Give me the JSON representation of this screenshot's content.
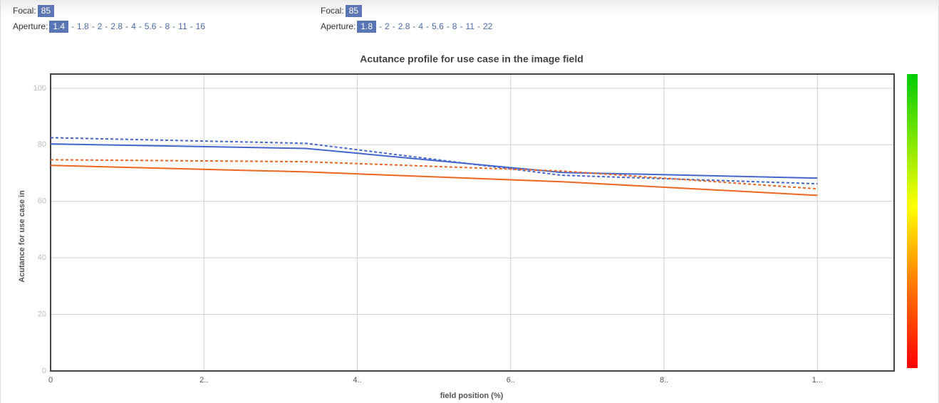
{
  "panels": [
    {
      "focal_label": "Focal:",
      "focal": "85",
      "aperture_label": "Aperture:",
      "aperture_selected": "1.4",
      "aperture_options": [
        "1.8",
        "2",
        "2.8",
        "4",
        "5.6",
        "8",
        "11",
        "16"
      ]
    },
    {
      "focal_label": "Focal:",
      "focal": "85",
      "aperture_label": "Aperture:",
      "aperture_selected": "1.8",
      "aperture_options": [
        "2",
        "2.8",
        "4",
        "5.6",
        "8",
        "11",
        "22"
      ]
    }
  ],
  "separator": "-",
  "chart_data": {
    "type": "line",
    "title": "Acutance profile for use case in the image field",
    "x_label": "field position (%)",
    "y_label": "Acutance for use case in",
    "x": [
      0,
      33.3,
      66.7,
      100
    ],
    "series": [
      {
        "color": "#4466cc",
        "dashed": false,
        "values": [
          80.3,
          78.7,
          70.2,
          68.2
        ]
      },
      {
        "color": "#4466cc",
        "dashed": true,
        "values": [
          82.5,
          80.5,
          69.2,
          66.2
        ]
      },
      {
        "color": "#ee6622",
        "dashed": false,
        "values": [
          72.7,
          70.4,
          66.9,
          62.1
        ]
      },
      {
        "color": "#ee6622",
        "dashed": true,
        "values": [
          74.7,
          74.0,
          70.7,
          64.4
        ]
      }
    ],
    "xlim": [
      0,
      110
    ],
    "xticks": [
      0,
      {
        "value": 20,
        "label": "2.."
      },
      {
        "value": 40,
        "label": "4.."
      },
      {
        "value": 60,
        "label": "6.."
      },
      {
        "value": 80,
        "label": "8.."
      },
      {
        "value": 100,
        "label": "1..."
      }
    ],
    "ylim": [
      0,
      105
    ],
    "yticks": [
      0,
      20,
      40,
      60,
      80,
      100
    ],
    "grid": true
  }
}
